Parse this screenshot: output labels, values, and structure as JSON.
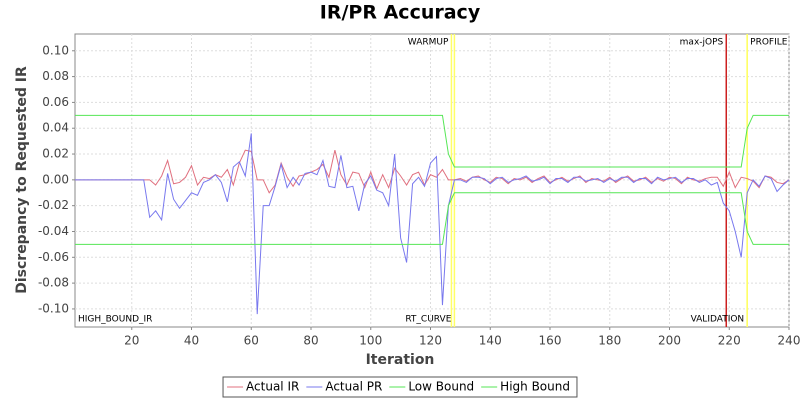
{
  "chart_data": {
    "type": "line",
    "title": "IR/PR Accuracy",
    "x_label": "Iteration",
    "y_label": "Discrepancy to Requested IR",
    "xlim": [
      1,
      240
    ],
    "ylim": [
      -0.114,
      0.113
    ],
    "xticks": [
      20,
      40,
      60,
      80,
      100,
      120,
      140,
      160,
      180,
      200,
      220,
      240
    ],
    "yticks": [
      {
        "value": -0.1,
        "label": "-0.10"
      },
      -0.08,
      -0.06,
      -0.04,
      -0.02,
      {
        "value": 0,
        "label": "0.00"
      },
      0.02,
      0.04,
      0.06,
      0.08,
      {
        "value": 0.1,
        "label": "0.10"
      }
    ],
    "grid": true,
    "legend": "bottom",
    "x": [
      1,
      2,
      4,
      6,
      8,
      10,
      12,
      14,
      16,
      18,
      20,
      22,
      24,
      26,
      28,
      30,
      32,
      34,
      36,
      38,
      40,
      42,
      44,
      46,
      48,
      50,
      52,
      54,
      56,
      58,
      60,
      62,
      64,
      66,
      68,
      70,
      72,
      74,
      76,
      78,
      80,
      82,
      84,
      86,
      88,
      90,
      92,
      94,
      96,
      98,
      100,
      102,
      104,
      106,
      108,
      110,
      112,
      114,
      116,
      118,
      120,
      122,
      124,
      126,
      128,
      130,
      132,
      134,
      136,
      138,
      140,
      142,
      144,
      146,
      148,
      150,
      152,
      154,
      156,
      158,
      160,
      162,
      164,
      166,
      168,
      170,
      172,
      174,
      176,
      178,
      180,
      182,
      184,
      186,
      188,
      190,
      192,
      194,
      196,
      198,
      200,
      202,
      204,
      206,
      208,
      210,
      212,
      214,
      216,
      218,
      220,
      222,
      224,
      226,
      228,
      230,
      232,
      234,
      236,
      238,
      240
    ],
    "series": [
      {
        "name": "Actual IR",
        "color": "#e0707f",
        "values": [
          0,
          0,
          0,
          0,
          0,
          0,
          0,
          0,
          0,
          0,
          0,
          0,
          0,
          0,
          -0.004,
          0.003,
          0.015,
          -0.003,
          -0.002,
          0.002,
          0.011,
          -0.004,
          0.002,
          0.001,
          0.004,
          0.002,
          0.008,
          -0.004,
          0.013,
          0.023,
          0.022,
          0,
          0,
          -0.01,
          -0.004,
          0.013,
          0.002,
          -0.005,
          0.003,
          0.004,
          0.006,
          0.008,
          0.012,
          0.002,
          0.023,
          0.004,
          -0.004,
          0.006,
          0.005,
          -0.006,
          0.006,
          -0.007,
          0.004,
          -0.006,
          0.009,
          0.003,
          -0.004,
          0.004,
          0.006,
          -0.004,
          0.004,
          0.002,
          0.008,
          0,
          0,
          0.001,
          -0.001,
          0.002,
          0.003,
          0,
          -0.002,
          0.002,
          0.001,
          -0.003,
          0.001,
          0,
          0.002,
          -0.002,
          0.001,
          0.003,
          -0.002,
          0,
          0.002,
          -0.001,
          0.001,
          0.003,
          -0.002,
          0.001,
          0,
          -0.001,
          0.002,
          -0.002,
          0.001,
          0.003,
          -0.001,
          0,
          0.002,
          -0.002,
          0.001,
          -0.001,
          0.002,
          0.001,
          -0.003,
          0.002,
          0,
          -0.001,
          0.001,
          0.002,
          0.002,
          -0.005,
          0.006,
          -0.006,
          0.002,
          0.001,
          -0.001,
          -0.006,
          0.003,
          0.002,
          -0.002,
          -0.003,
          0
        ]
      },
      {
        "name": "Actual PR",
        "color": "#7878ee",
        "values": [
          0,
          0,
          0,
          0,
          0,
          0,
          0,
          0,
          0,
          0,
          0,
          0,
          0,
          -0.029,
          -0.024,
          -0.031,
          0.005,
          -0.015,
          -0.022,
          -0.016,
          -0.01,
          -0.012,
          -0.002,
          0,
          0.004,
          -0.002,
          -0.017,
          0.01,
          0.014,
          0.003,
          0.036,
          -0.104,
          -0.02,
          -0.02,
          -0.005,
          0.012,
          -0.006,
          0.002,
          -0.004,
          0.005,
          0.006,
          0.004,
          0.015,
          -0.005,
          -0.006,
          0.019,
          -0.006,
          -0.005,
          -0.024,
          -0.003,
          0.003,
          -0.008,
          -0.01,
          -0.02,
          0.02,
          -0.045,
          -0.064,
          -0.003,
          0.002,
          -0.005,
          0.013,
          0.018,
          -0.097,
          -0.02,
          0,
          0,
          -0.002,
          0.002,
          0.002,
          0.001,
          -0.003,
          0.001,
          0.002,
          -0.002,
          0,
          0.001,
          0.003,
          -0.001,
          0,
          0.002,
          -0.003,
          0.001,
          0.001,
          -0.002,
          0.002,
          0.002,
          -0.001,
          0,
          0.001,
          -0.002,
          0.001,
          -0.001,
          0.002,
          0.002,
          -0.002,
          0.001,
          0.001,
          -0.003,
          0.002,
          0,
          0.001,
          0.002,
          -0.002,
          0.001,
          0.001,
          -0.002,
          0,
          -0.004,
          -0.002,
          -0.018,
          -0.024,
          -0.04,
          -0.06,
          -0.01,
          0,
          -0.005,
          0.003,
          0.001,
          -0.009,
          -0.004,
          0
        ]
      },
      {
        "name": "Low Bound",
        "color": "#55e655",
        "values": [
          -0.05,
          -0.05,
          -0.05,
          -0.05,
          -0.05,
          -0.05,
          -0.05,
          -0.05,
          -0.05,
          -0.05,
          -0.05,
          -0.05,
          -0.05,
          -0.05,
          -0.05,
          -0.05,
          -0.05,
          -0.05,
          -0.05,
          -0.05,
          -0.05,
          -0.05,
          -0.05,
          -0.05,
          -0.05,
          -0.05,
          -0.05,
          -0.05,
          -0.05,
          -0.05,
          -0.05,
          -0.05,
          -0.05,
          -0.05,
          -0.05,
          -0.05,
          -0.05,
          -0.05,
          -0.05,
          -0.05,
          -0.05,
          -0.05,
          -0.05,
          -0.05,
          -0.05,
          -0.05,
          -0.05,
          -0.05,
          -0.05,
          -0.05,
          -0.05,
          -0.05,
          -0.05,
          -0.05,
          -0.05,
          -0.05,
          -0.05,
          -0.05,
          -0.05,
          -0.05,
          -0.05,
          -0.05,
          -0.05,
          -0.02,
          -0.01,
          -0.01,
          -0.01,
          -0.01,
          -0.01,
          -0.01,
          -0.01,
          -0.01,
          -0.01,
          -0.01,
          -0.01,
          -0.01,
          -0.01,
          -0.01,
          -0.01,
          -0.01,
          -0.01,
          -0.01,
          -0.01,
          -0.01,
          -0.01,
          -0.01,
          -0.01,
          -0.01,
          -0.01,
          -0.01,
          -0.01,
          -0.01,
          -0.01,
          -0.01,
          -0.01,
          -0.01,
          -0.01,
          -0.01,
          -0.01,
          -0.01,
          -0.01,
          -0.01,
          -0.01,
          -0.01,
          -0.01,
          -0.01,
          -0.01,
          -0.01,
          -0.01,
          -0.01,
          -0.01,
          -0.01,
          -0.01,
          -0.04,
          -0.05,
          -0.05,
          -0.05,
          -0.05,
          -0.05,
          -0.05,
          -0.05
        ]
      },
      {
        "name": "High Bound",
        "color": "#55e655",
        "values": [
          0.05,
          0.05,
          0.05,
          0.05,
          0.05,
          0.05,
          0.05,
          0.05,
          0.05,
          0.05,
          0.05,
          0.05,
          0.05,
          0.05,
          0.05,
          0.05,
          0.05,
          0.05,
          0.05,
          0.05,
          0.05,
          0.05,
          0.05,
          0.05,
          0.05,
          0.05,
          0.05,
          0.05,
          0.05,
          0.05,
          0.05,
          0.05,
          0.05,
          0.05,
          0.05,
          0.05,
          0.05,
          0.05,
          0.05,
          0.05,
          0.05,
          0.05,
          0.05,
          0.05,
          0.05,
          0.05,
          0.05,
          0.05,
          0.05,
          0.05,
          0.05,
          0.05,
          0.05,
          0.05,
          0.05,
          0.05,
          0.05,
          0.05,
          0.05,
          0.05,
          0.05,
          0.05,
          0.05,
          0.02,
          0.01,
          0.01,
          0.01,
          0.01,
          0.01,
          0.01,
          0.01,
          0.01,
          0.01,
          0.01,
          0.01,
          0.01,
          0.01,
          0.01,
          0.01,
          0.01,
          0.01,
          0.01,
          0.01,
          0.01,
          0.01,
          0.01,
          0.01,
          0.01,
          0.01,
          0.01,
          0.01,
          0.01,
          0.01,
          0.01,
          0.01,
          0.01,
          0.01,
          0.01,
          0.01,
          0.01,
          0.01,
          0.01,
          0.01,
          0.01,
          0.01,
          0.01,
          0.01,
          0.01,
          0.01,
          0.01,
          0.01,
          0.01,
          0.01,
          0.04,
          0.05,
          0.05,
          0.05,
          0.05,
          0.05,
          0.05,
          0.05
        ]
      }
    ],
    "markers": [
      {
        "x": 1,
        "label": "HIGH_BOUND_IR",
        "position": "bottom",
        "align": "start"
      },
      {
        "x": 127,
        "label": "WARMUP",
        "color": "#ffff66",
        "position": "top",
        "align": "end"
      },
      {
        "x": 128,
        "label": "RT_CURVE",
        "color": "#ffff66",
        "position": "bottom",
        "align": "end"
      },
      {
        "x": 219,
        "label": "max-jOPS",
        "color": "#cc2020",
        "position": "top",
        "align": "end"
      },
      {
        "x": 226,
        "label": "VALIDATION",
        "color": "#ffff66",
        "position": "bottom",
        "align": "end"
      },
      {
        "x": 226,
        "label": "PROFILE",
        "color": "#ffff66",
        "position": "top",
        "align": "start"
      }
    ]
  }
}
